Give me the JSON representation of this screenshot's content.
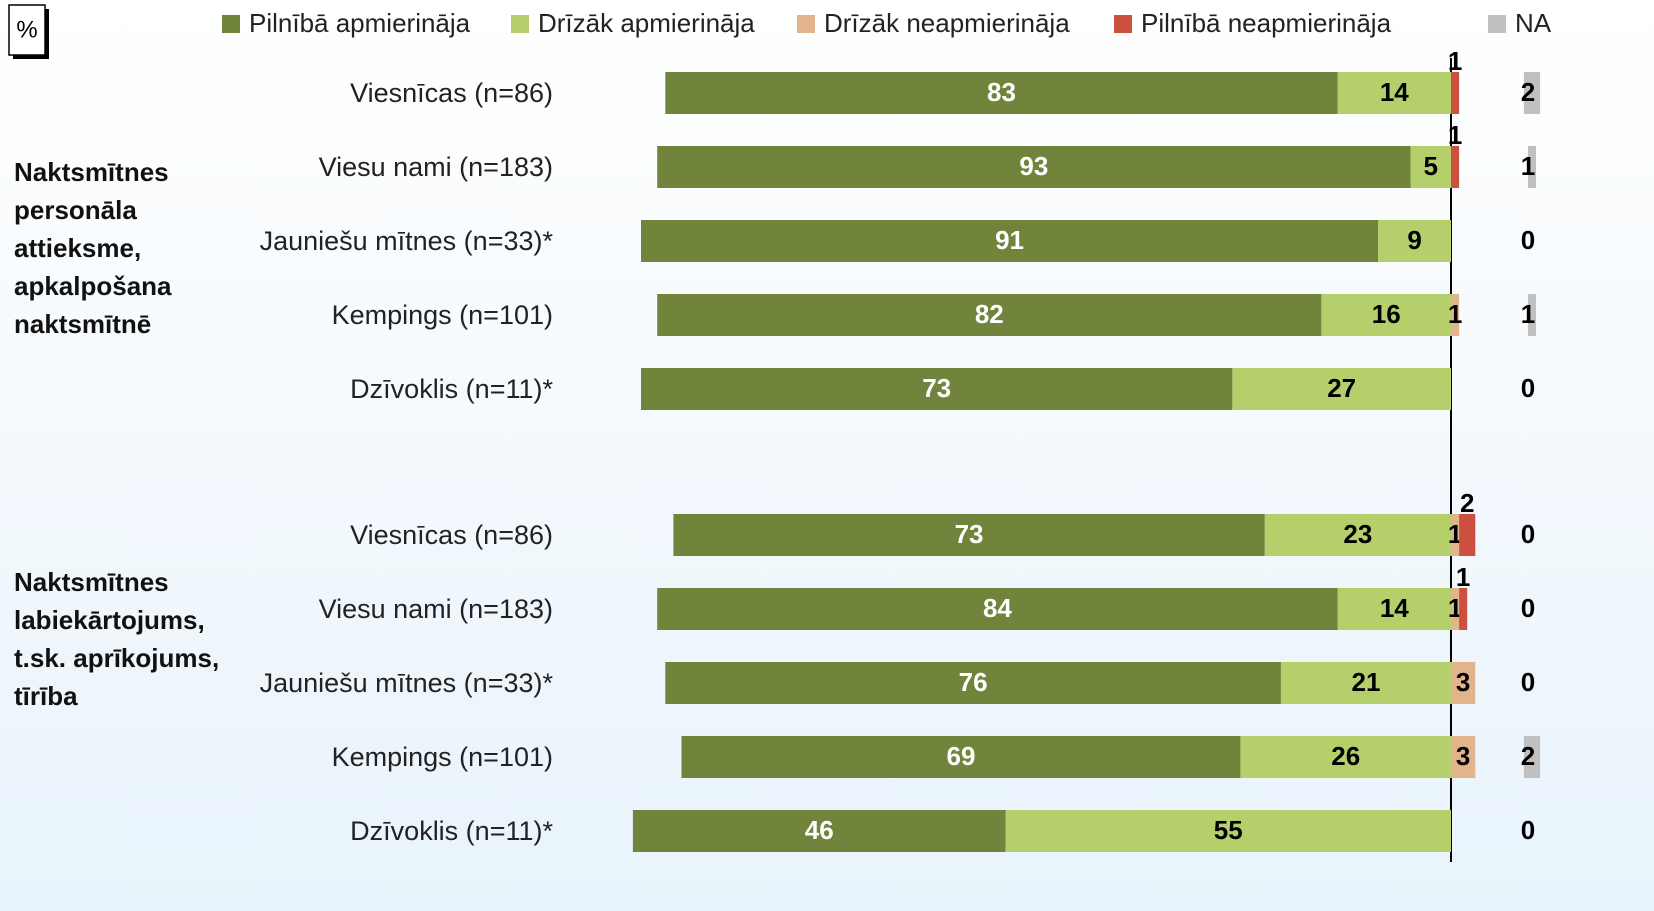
{
  "chart_data": {
    "type": "diverging_bar",
    "unit_label": "%",
    "categories": [
      "Viesnīcas (n=86)",
      "Viesu nami (n=183)",
      "Jauniešu mītnes (n=33)*",
      "Kempings (n=101)",
      "Dzīvoklis (n=11)*",
      "Viesnīcas (n=86)",
      "Viesu nami (n=183)",
      "Jauniešu mītnes (n=33)*",
      "Kempings (n=101)",
      "Dzīvoklis (n=11)*"
    ],
    "groups": [
      {
        "lines": [
          "Naktsmītnes",
          "personāla",
          "attieksme,",
          "apkalpošana",
          "naktsmītnē"
        ]
      },
      {
        "lines": [
          "Naktsmītnes",
          "labiekārtojums,",
          "t.sk. aprīkojums,",
          "tīrība"
        ]
      }
    ],
    "series": [
      {
        "name": "Pilnībā apmierināja",
        "color": "#70843c",
        "side": "left",
        "values": [
          83,
          93,
          91,
          82,
          73,
          73,
          84,
          76,
          69,
          46
        ]
      },
      {
        "name": "Drīzāk apmierināja",
        "color": "#b5d06a",
        "side": "left",
        "values": [
          14,
          5,
          9,
          16,
          27,
          23,
          14,
          21,
          26,
          55
        ]
      },
      {
        "name": "Drīzāk neapmierināja",
        "color": "#e2b48c",
        "side": "right",
        "values": [
          0,
          0,
          0,
          1,
          0,
          1,
          1,
          3,
          3,
          0
        ]
      },
      {
        "name": "Pilnībā neapmierināja",
        "color": "#cc5040",
        "side": "right",
        "values": [
          1,
          1,
          0,
          0,
          0,
          2,
          1,
          0,
          0,
          0
        ]
      },
      {
        "name": "NA",
        "color": "#c0c0c0",
        "side": "separate",
        "values": [
          2,
          1,
          0,
          1,
          0,
          0,
          0,
          0,
          2,
          0
        ]
      }
    ]
  }
}
